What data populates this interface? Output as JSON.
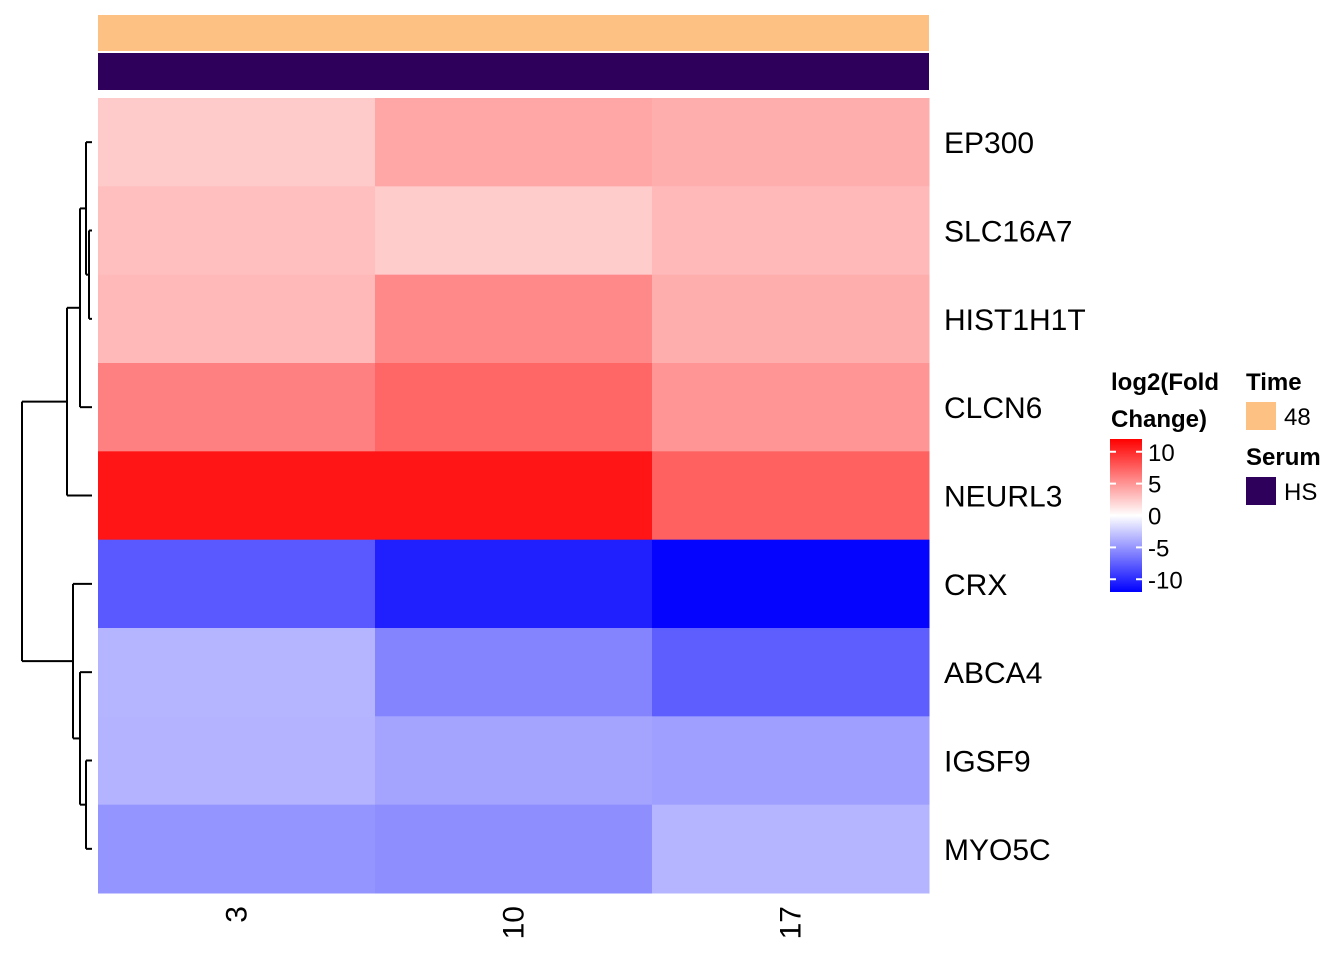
{
  "chart_data": {
    "type": "heatmap",
    "columns": [
      "3",
      "10",
      "17"
    ],
    "rows": [
      "EP300",
      "SLC16A7",
      "HIST1H1T",
      "CLCN6",
      "NEURL3",
      "CRX",
      "ABCA4",
      "IGSF9",
      "MYO5C"
    ],
    "values": [
      [
        2.5,
        4.2,
        3.8
      ],
      [
        3.0,
        2.4,
        3.3
      ],
      [
        3.3,
        5.6,
        3.8
      ],
      [
        6.0,
        7.2,
        5.0
      ],
      [
        11.0,
        11.0,
        7.5
      ],
      [
        -7.8,
        -10.5,
        -11.8
      ],
      [
        -3.5,
        -5.8,
        -7.6
      ],
      [
        -3.6,
        -4.3,
        -4.5
      ],
      [
        -5.0,
        -5.3,
        -3.5
      ]
    ],
    "color_scale": {
      "title": "log2(Fold\nChange)",
      "title_lines": [
        "log2(Fold",
        "Change)"
      ],
      "min": -12,
      "max": 12,
      "ticks": [
        10,
        5,
        0,
        -5,
        -10
      ],
      "low_color": "#0000FF",
      "mid_color": "#FFFFFF",
      "high_color": "#FF0000"
    },
    "column_annotations": [
      {
        "name": "Time",
        "level": "48",
        "color": "#FDC283"
      },
      {
        "name": "Serum",
        "level": "HS",
        "color": "#2E005C"
      }
    ],
    "row_dendrogram": true,
    "grid": false
  }
}
